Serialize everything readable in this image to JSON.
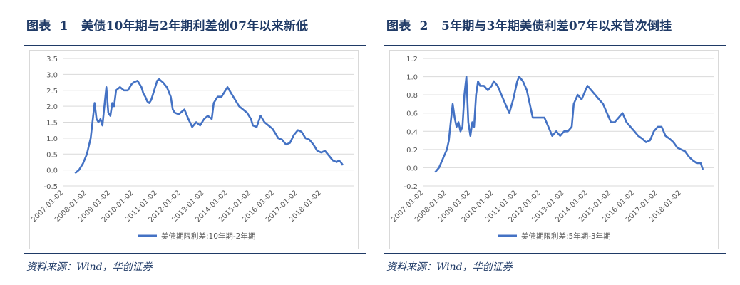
{
  "figures": [
    {
      "title_prefix": "图表",
      "number": "1",
      "title": "美债10年期与2年期利差创07年以来新低",
      "source": "资料来源：Wind，华创证券"
    },
    {
      "title_prefix": "图表",
      "number": "2",
      "title": "5年期与3年期美债利差07年以来首次倒挂",
      "source": "资料来源：Wind，华创证券"
    }
  ],
  "chart_data": [
    {
      "type": "line",
      "series": [
        {
          "name": "美债期限利差:10年期-2年期",
          "color": "#4472c4",
          "points": [
            [
              "2007-07-02",
              -0.1
            ],
            [
              "2007-09-01",
              0.0
            ],
            [
              "2007-11-01",
              0.2
            ],
            [
              "2008-01-02",
              0.5
            ],
            [
              "2008-03-01",
              1.0
            ],
            [
              "2008-04-15",
              1.8
            ],
            [
              "2008-05-01",
              2.1
            ],
            [
              "2008-06-01",
              1.6
            ],
            [
              "2008-07-01",
              1.5
            ],
            [
              "2008-08-01",
              1.6
            ],
            [
              "2008-09-01",
              1.4
            ],
            [
              "2008-10-01",
              2.0
            ],
            [
              "2008-11-01",
              2.6
            ],
            [
              "2008-12-01",
              1.8
            ],
            [
              "2009-01-02",
              1.7
            ],
            [
              "2009-02-01",
              2.1
            ],
            [
              "2009-03-01",
              2.0
            ],
            [
              "2009-04-01",
              2.5
            ],
            [
              "2009-06-01",
              2.6
            ],
            [
              "2009-08-01",
              2.5
            ],
            [
              "2009-10-01",
              2.5
            ],
            [
              "2009-12-01",
              2.7
            ],
            [
              "2010-01-02",
              2.75
            ],
            [
              "2010-03-01",
              2.8
            ],
            [
              "2010-05-01",
              2.6
            ],
            [
              "2010-06-01",
              2.4
            ],
            [
              "2010-07-01",
              2.3
            ],
            [
              "2010-08-01",
              2.15
            ],
            [
              "2010-09-01",
              2.1
            ],
            [
              "2010-10-01",
              2.2
            ],
            [
              "2010-11-01",
              2.4
            ],
            [
              "2011-01-02",
              2.8
            ],
            [
              "2011-02-01",
              2.85
            ],
            [
              "2011-04-01",
              2.75
            ],
            [
              "2011-06-01",
              2.6
            ],
            [
              "2011-08-01",
              2.3
            ],
            [
              "2011-09-01",
              1.9
            ],
            [
              "2011-10-01",
              1.8
            ],
            [
              "2011-12-01",
              1.75
            ],
            [
              "2012-01-02",
              1.8
            ],
            [
              "2012-03-01",
              1.9
            ],
            [
              "2012-05-01",
              1.6
            ],
            [
              "2012-07-01",
              1.35
            ],
            [
              "2012-09-01",
              1.5
            ],
            [
              "2012-11-01",
              1.4
            ],
            [
              "2013-01-02",
              1.6
            ],
            [
              "2013-03-01",
              1.7
            ],
            [
              "2013-05-01",
              1.6
            ],
            [
              "2013-06-01",
              2.1
            ],
            [
              "2013-08-01",
              2.3
            ],
            [
              "2013-10-01",
              2.3
            ],
            [
              "2013-12-01",
              2.5
            ],
            [
              "2014-01-02",
              2.6
            ],
            [
              "2014-03-01",
              2.4
            ],
            [
              "2014-05-01",
              2.2
            ],
            [
              "2014-07-01",
              2.0
            ],
            [
              "2014-09-01",
              1.9
            ],
            [
              "2014-11-01",
              1.8
            ],
            [
              "2015-01-02",
              1.6
            ],
            [
              "2015-02-01",
              1.4
            ],
            [
              "2015-04-01",
              1.35
            ],
            [
              "2015-06-01",
              1.7
            ],
            [
              "2015-08-01",
              1.5
            ],
            [
              "2015-10-01",
              1.4
            ],
            [
              "2015-12-01",
              1.3
            ],
            [
              "2016-01-02",
              1.2
            ],
            [
              "2016-03-01",
              1.0
            ],
            [
              "2016-05-01",
              0.95
            ],
            [
              "2016-07-01",
              0.8
            ],
            [
              "2016-09-01",
              0.85
            ],
            [
              "2016-11-01",
              1.1
            ],
            [
              "2017-01-02",
              1.25
            ],
            [
              "2017-03-01",
              1.2
            ],
            [
              "2017-05-01",
              1.0
            ],
            [
              "2017-07-01",
              0.95
            ],
            [
              "2017-09-01",
              0.8
            ],
            [
              "2017-11-01",
              0.6
            ],
            [
              "2018-01-02",
              0.55
            ],
            [
              "2018-03-01",
              0.6
            ],
            [
              "2018-05-01",
              0.45
            ],
            [
              "2018-07-01",
              0.3
            ],
            [
              "2018-09-01",
              0.25
            ],
            [
              "2018-10-01",
              0.3
            ],
            [
              "2018-11-01",
              0.25
            ],
            [
              "2018-12-04",
              0.15
            ]
          ]
        }
      ],
      "y_ticks": [
        "3.5",
        "3.0",
        "2.5",
        "2.0",
        "1.5",
        "1.0",
        "0.5",
        "0.0",
        "-0.5"
      ],
      "ylim": [
        -0.5,
        3.5
      ],
      "x_ticks": [
        "2007-01-02",
        "2008-01-02",
        "2009-01-02",
        "2010-01-02",
        "2011-01-02",
        "2012-01-02",
        "2013-01-02",
        "2014-01-02",
        "2015-01-02",
        "2016-01-02",
        "2017-01-02",
        "2018-01-02"
      ],
      "x_range": [
        "2007-01-02",
        "2019-06-01"
      ],
      "legend_position": "bottom",
      "grid": true
    },
    {
      "type": "line",
      "series": [
        {
          "name": "美债期限利差:5年期-3年期",
          "color": "#4472c4",
          "points": [
            [
              "2007-07-02",
              -0.05
            ],
            [
              "2007-09-01",
              0.0
            ],
            [
              "2007-11-01",
              0.1
            ],
            [
              "2008-01-02",
              0.2
            ],
            [
              "2008-02-01",
              0.3
            ],
            [
              "2008-03-01",
              0.5
            ],
            [
              "2008-04-01",
              0.7
            ],
            [
              "2008-05-01",
              0.55
            ],
            [
              "2008-06-01",
              0.45
            ],
            [
              "2008-07-01",
              0.5
            ],
            [
              "2008-08-01",
              0.4
            ],
            [
              "2008-09-01",
              0.45
            ],
            [
              "2008-10-01",
              0.8
            ],
            [
              "2008-11-01",
              1.0
            ],
            [
              "2008-12-01",
              0.5
            ],
            [
              "2009-01-02",
              0.35
            ],
            [
              "2009-02-01",
              0.5
            ],
            [
              "2009-03-01",
              0.45
            ],
            [
              "2009-04-01",
              0.8
            ],
            [
              "2009-05-01",
              0.95
            ],
            [
              "2009-06-01",
              0.9
            ],
            [
              "2009-08-01",
              0.9
            ],
            [
              "2009-10-01",
              0.85
            ],
            [
              "2009-12-01",
              0.9
            ],
            [
              "2010-01-02",
              0.95
            ],
            [
              "2010-03-01",
              0.9
            ],
            [
              "2010-05-01",
              0.8
            ],
            [
              "2010-07-01",
              0.7
            ],
            [
              "2010-09-01",
              0.6
            ],
            [
              "2010-11-01",
              0.75
            ],
            [
              "2011-01-02",
              0.95
            ],
            [
              "2011-02-01",
              1.0
            ],
            [
              "2011-04-01",
              0.95
            ],
            [
              "2011-06-01",
              0.85
            ],
            [
              "2011-08-01",
              0.65
            ],
            [
              "2011-09-01",
              0.55
            ],
            [
              "2011-11-01",
              0.55
            ],
            [
              "2012-01-02",
              0.55
            ],
            [
              "2012-03-01",
              0.55
            ],
            [
              "2012-05-01",
              0.45
            ],
            [
              "2012-07-01",
              0.35
            ],
            [
              "2012-09-01",
              0.4
            ],
            [
              "2012-11-01",
              0.35
            ],
            [
              "2013-01-02",
              0.4
            ],
            [
              "2013-03-01",
              0.4
            ],
            [
              "2013-05-01",
              0.45
            ],
            [
              "2013-06-01",
              0.7
            ],
            [
              "2013-08-01",
              0.8
            ],
            [
              "2013-10-01",
              0.75
            ],
            [
              "2013-12-01",
              0.85
            ],
            [
              "2014-01-02",
              0.9
            ],
            [
              "2014-03-01",
              0.85
            ],
            [
              "2014-05-01",
              0.8
            ],
            [
              "2014-07-01",
              0.75
            ],
            [
              "2014-09-01",
              0.7
            ],
            [
              "2014-11-01",
              0.6
            ],
            [
              "2015-01-02",
              0.5
            ],
            [
              "2015-03-01",
              0.5
            ],
            [
              "2015-05-01",
              0.55
            ],
            [
              "2015-07-01",
              0.6
            ],
            [
              "2015-09-01",
              0.5
            ],
            [
              "2015-11-01",
              0.45
            ],
            [
              "2016-01-02",
              0.4
            ],
            [
              "2016-03-01",
              0.35
            ],
            [
              "2016-05-01",
              0.32
            ],
            [
              "2016-07-01",
              0.28
            ],
            [
              "2016-09-01",
              0.3
            ],
            [
              "2016-11-01",
              0.4
            ],
            [
              "2017-01-02",
              0.45
            ],
            [
              "2017-03-01",
              0.45
            ],
            [
              "2017-05-01",
              0.35
            ],
            [
              "2017-07-01",
              0.32
            ],
            [
              "2017-09-01",
              0.28
            ],
            [
              "2017-11-01",
              0.22
            ],
            [
              "2018-01-02",
              0.2
            ],
            [
              "2018-03-01",
              0.18
            ],
            [
              "2018-05-01",
              0.12
            ],
            [
              "2018-07-01",
              0.08
            ],
            [
              "2018-09-01",
              0.05
            ],
            [
              "2018-11-01",
              0.05
            ],
            [
              "2018-12-04",
              -0.02
            ]
          ]
        }
      ],
      "y_ticks": [
        "1.2",
        "1.0",
        "0.8",
        "0.6",
        "0.4",
        "0.2",
        "0.0",
        "-0.2"
      ],
      "ylim": [
        -0.2,
        1.2
      ],
      "x_ticks": [
        "2007-01-02",
        "2008-01-02",
        "2009-01-02",
        "2010-01-02",
        "2011-01-02",
        "2012-01-02",
        "2013-01-02",
        "2014-01-02",
        "2015-01-02",
        "2016-01-02",
        "2017-01-02",
        "2018-01-02"
      ],
      "x_range": [
        "2007-01-02",
        "2019-06-01"
      ],
      "legend_position": "bottom",
      "grid": true
    }
  ]
}
